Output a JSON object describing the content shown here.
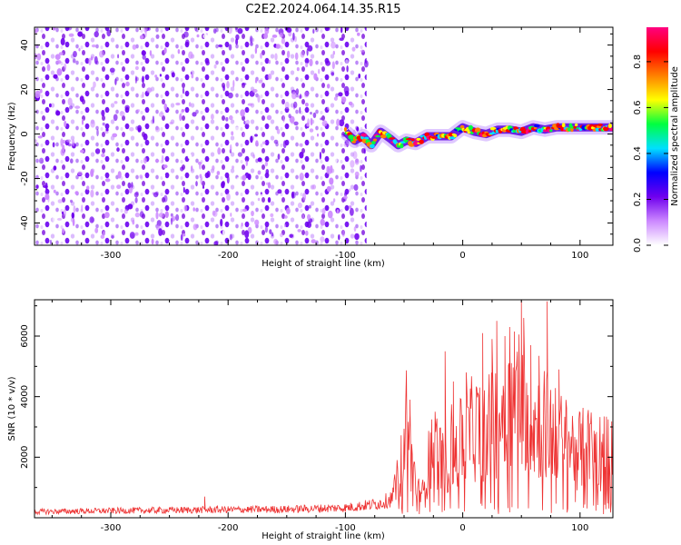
{
  "title": "C2E2.2024.064.14.35.R15",
  "chart_data": [
    {
      "type": "heatmap",
      "title": "C2E2.2024.064.14.35.R15",
      "xlabel": "Height of straight line (km)",
      "ylabel": "Frequency (Hz)",
      "xlim": [
        -365,
        128
      ],
      "ylim": [
        -50,
        48
      ],
      "xticks": [
        -300,
        -200,
        -100,
        0,
        100
      ],
      "yticks": [
        -40,
        -20,
        0,
        20,
        40
      ],
      "grid": false,
      "noise_region_end_km": -82,
      "signal_track": {
        "x": [
          -100,
          -92,
          -85,
          -78,
          -70,
          -62,
          -55,
          -48,
          -40,
          -30,
          -20,
          -10,
          0,
          10,
          20,
          30,
          40,
          50,
          60,
          70,
          80,
          90,
          100,
          110,
          120,
          128
        ],
        "y": [
          1,
          -3,
          -1,
          -5,
          1,
          -2,
          -5,
          -3,
          -4,
          -1,
          -1,
          -1,
          3,
          1,
          0,
          2,
          2,
          1,
          3,
          2,
          3,
          3,
          3,
          3,
          3,
          3
        ]
      },
      "colorbar": {
        "label": "Normalized spectral amplitude",
        "range": [
          0.0,
          0.95
        ],
        "ticks": [
          0.0,
          0.2,
          0.4,
          0.6,
          0.8
        ],
        "tick_labels": [
          "0.0",
          "0.2",
          "0.4",
          "0.6",
          "0.8"
        ],
        "colormap": [
          "#ffffff",
          "#cc88ff",
          "#7000ee",
          "#0000ff",
          "#00e0ff",
          "#00ff40",
          "#ffff00",
          "#ff8000",
          "#ff0000",
          "#ff0080"
        ]
      }
    },
    {
      "type": "line",
      "xlabel": "Height of straight line (km)",
      "ylabel": "SNR (10 * v/v)",
      "xlim": [
        -365,
        128
      ],
      "ylim": [
        0,
        7200
      ],
      "xticks": [
        -300,
        -200,
        -100,
        0,
        100
      ],
      "yticks": [
        2000,
        4000,
        6000
      ],
      "grid": false,
      "series": [
        {
          "color": "#ee3333",
          "x": [
            -365,
            -300,
            -220,
            -150,
            -100,
            -80,
            -70,
            -60,
            -55,
            -50,
            -48,
            -45,
            -40,
            -35,
            -30,
            -25,
            -20,
            -15,
            -10,
            -5,
            0,
            10,
            20,
            30,
            40,
            45,
            50,
            55,
            60,
            70,
            80,
            90,
            100,
            110,
            120,
            128
          ],
          "y": [
            200,
            230,
            260,
            280,
            330,
            420,
            480,
            650,
            1500,
            2400,
            3800,
            2600,
            1200,
            700,
            1800,
            2900,
            2300,
            1700,
            2700,
            2300,
            3000,
            3300,
            3200,
            3700,
            4000,
            4300,
            4600,
            4000,
            3400,
            3500,
            3000,
            2700,
            2500,
            2600,
            2400,
            2300
          ],
          "peaks_x": [
            -220,
            -45,
            -15,
            -8,
            3,
            17,
            25,
            29,
            36,
            40,
            44,
            50,
            52,
            58,
            65,
            72,
            82
          ],
          "peaks_y": [
            700,
            3900,
            5500,
            4500,
            4800,
            6100,
            5900,
            6500,
            6000,
            6300,
            6150,
            7200,
            6600,
            5700,
            5350,
            7150,
            4900
          ]
        }
      ]
    }
  ]
}
